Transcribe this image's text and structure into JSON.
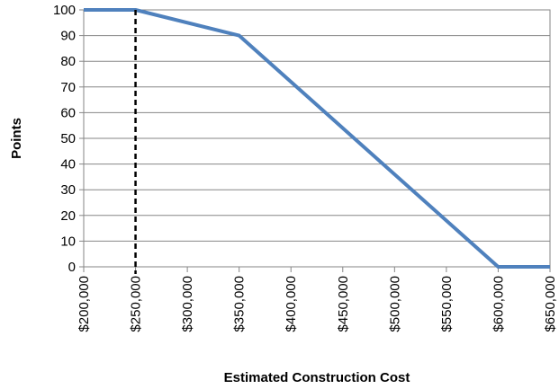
{
  "chart_data": {
    "type": "line",
    "title": "",
    "xlabel": "Estimated Construction Cost",
    "ylabel": "Points",
    "xlim": [
      200000,
      650000
    ],
    "ylim": [
      0,
      100
    ],
    "x_ticks": [
      200000,
      250000,
      300000,
      350000,
      400000,
      450000,
      500000,
      550000,
      600000,
      650000
    ],
    "x_tick_labels": [
      "$200,000",
      "$250,000",
      "$300,000",
      "$350,000",
      "$400,000",
      "$450,000",
      "$500,000",
      "$550,000",
      "$600,000",
      "$650,000"
    ],
    "y_ticks": [
      0,
      10,
      20,
      30,
      40,
      50,
      60,
      70,
      80,
      90,
      100
    ],
    "y_tick_labels": [
      "0",
      "10",
      "20",
      "30",
      "40",
      "50",
      "60",
      "70",
      "80",
      "90",
      "100"
    ],
    "grid": "horizontal",
    "legend": "none",
    "series": [
      {
        "color": "#4f81bd",
        "points": [
          [
            200000,
            100
          ],
          [
            250000,
            100
          ],
          [
            350000,
            90
          ],
          [
            600000,
            0
          ],
          [
            650000,
            0
          ]
        ]
      }
    ],
    "reference_lines": [
      {
        "axis": "x",
        "value": 250000,
        "style": "dashed",
        "color": "#000000"
      }
    ]
  }
}
